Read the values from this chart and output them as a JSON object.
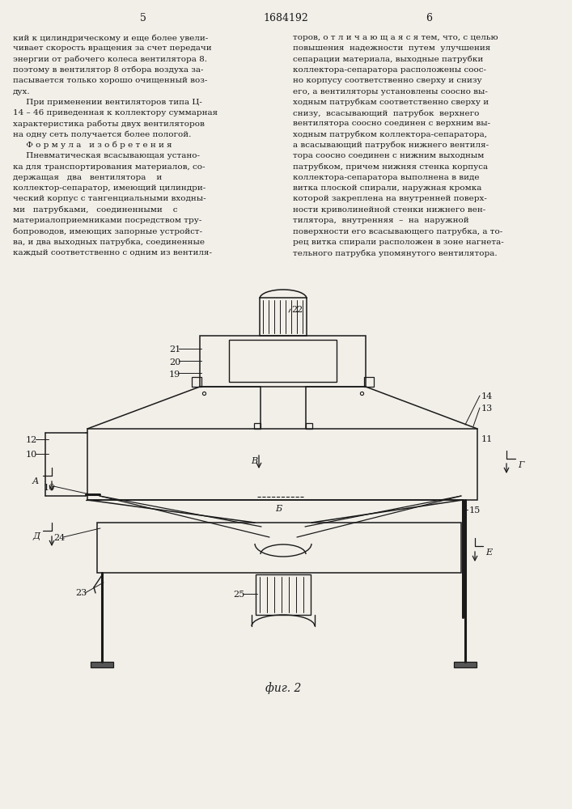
{
  "page_num_left": "5",
  "page_num_center": "1684192",
  "page_num_right": "6",
  "fig_caption": "фиг. 2",
  "bg_color": "#f2efe9",
  "line_color": "#1a1a1a",
  "text_color": "#1a1a1a",
  "left_column": [
    "кий к цилиндрическому и еще более увели-",
    "чивает скорость вращения за счет передачи",
    "энергии от рабочего колеса вентилятора 8.",
    "поэтому в вентилятор 8 отбора воздуха за-",
    "пасывается только хорошо очищенный воз-",
    "дух.",
    "     При применении вентиляторов типа Ц-",
    "14 – 46 приведенная к коллектору суммарная",
    "характеристика работы двух вентиляторов",
    "на одну сеть получается более пологой.",
    "     Ф о р м у л а   и з о б р е т е н и я",
    "     Пневматическая всасывающая устано-",
    "ка для транспортирования материалов, со-",
    "держащая   два   вентилятора    и",
    "коллектор-сепаратор, имеющий цилиндри-",
    "ческий корпус с тангенциальными входны-",
    "ми   патрубками,   соединенными    с",
    "материалоприемниками посредством тру-",
    "бопроводов, имеющих запорные устройст-",
    "ва, и два выходных патрубка, соединенные",
    "каждый соответственно с одним из вентиля-"
  ],
  "right_column": [
    "торов, о т л и ч а ю щ а я с я тем, что, с целью",
    "повышения  надежности  путем  улучшения",
    "сепарации материала, выходные патрубки",
    "коллектора-сепаратора расположены соос-",
    "но корпусу соответственно сверху и снизу",
    "его, а вентиляторы установлены соосно вы-",
    "ходным патрубкам соответственно сверху и",
    "снизу,  всасывающий  патрубок  верхнего",
    "вентилятора соосно соединен с верхним вы-",
    "ходным патрубком коллектора-сепаратора,",
    "а всасывающий патрубок нижнего вентиля-",
    "тора соосно соединен с нижним выходным",
    "патрубком, причем нижняя стенка корпуса",
    "коллектора-сепаратора выполнена в виде",
    "витка плоской спирали, наружная кромка",
    "которой закреплена на внутренней поверх-",
    "ности криволинейной стенки нижнего вен-",
    "тилятора,  внутренняя  –  на  наружной",
    "поверхности его всасывающего патрубка, а то-",
    "рец витка спирали расположен в зоне нагнета-",
    "тельного патрубка упомянутого вентилятора."
  ]
}
